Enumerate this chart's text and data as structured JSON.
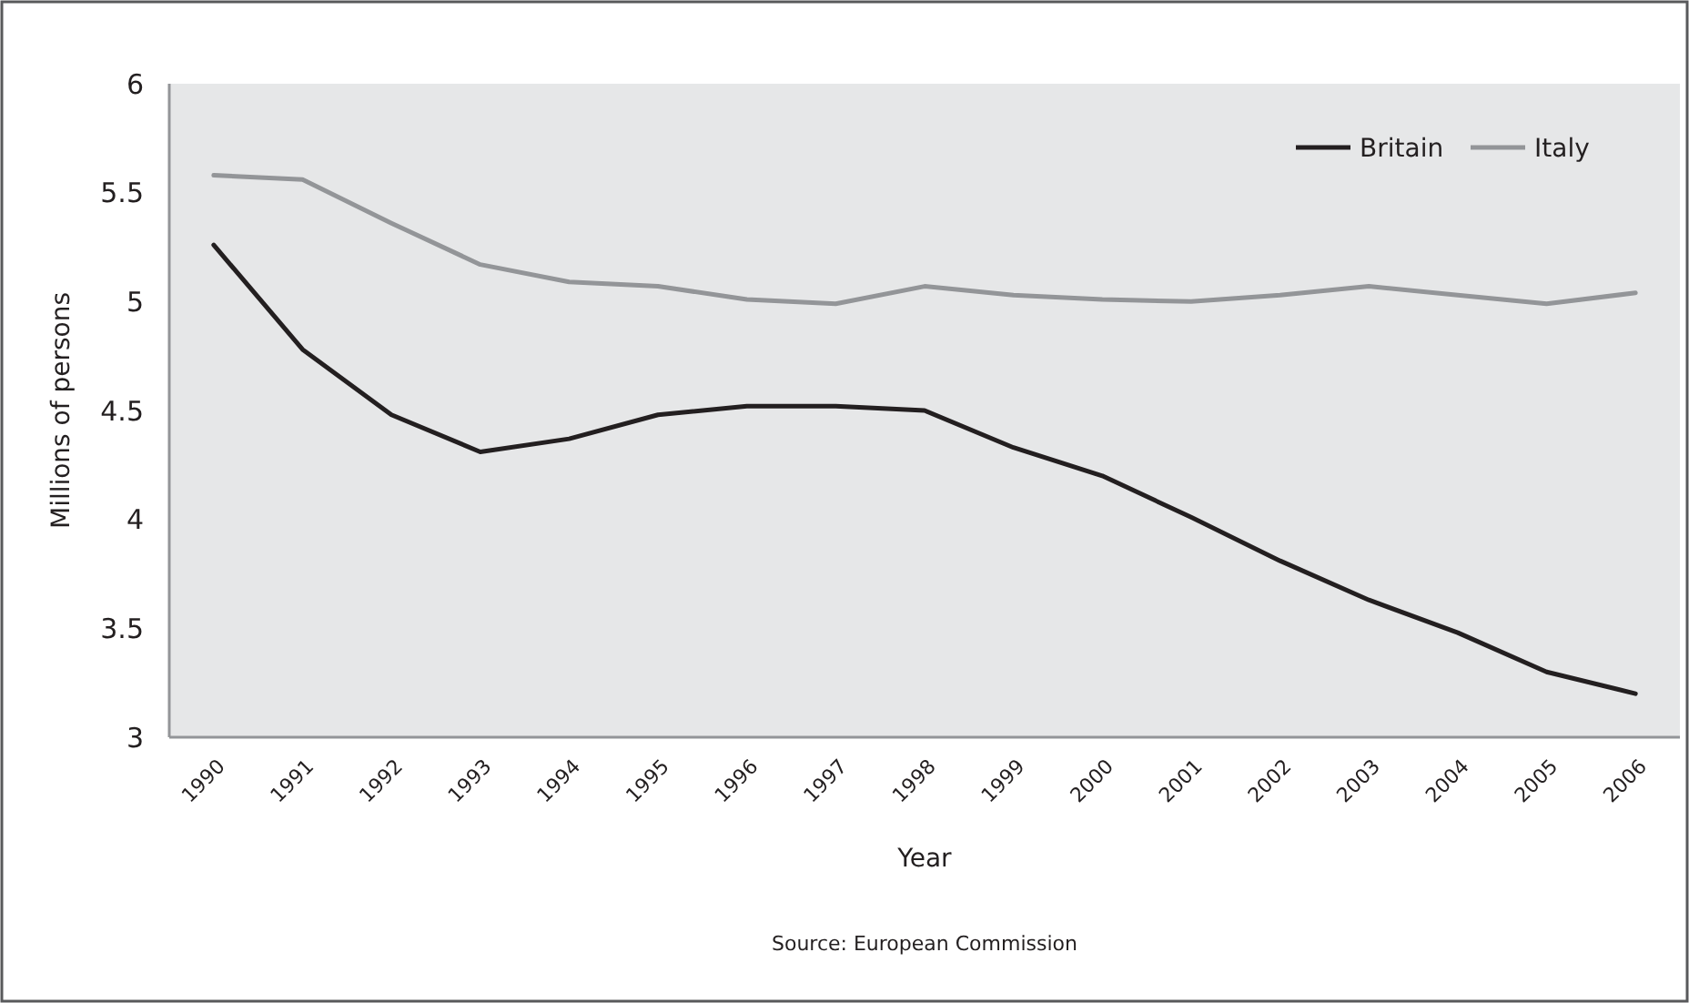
{
  "chart_data": {
    "type": "line",
    "xlabel": "Year",
    "ylabel": "Millions of persons",
    "annotations": [
      "Source: European Commission"
    ],
    "categories": [
      "1990",
      "1991",
      "1992",
      "1993",
      "1994",
      "1995",
      "1996",
      "1997",
      "1998",
      "1999",
      "2000",
      "2001",
      "2002",
      "2003",
      "2004",
      "2005",
      "2006"
    ],
    "series": [
      {
        "name": "Britain",
        "color": "#231f20",
        "values": [
          5.26,
          4.78,
          4.48,
          4.31,
          4.37,
          4.48,
          4.52,
          4.52,
          4.5,
          4.33,
          4.2,
          4.01,
          3.81,
          3.63,
          3.48,
          3.3,
          3.2
        ]
      },
      {
        "name": "Italy",
        "color": "#939598",
        "values": [
          5.58,
          5.56,
          5.36,
          5.17,
          5.09,
          5.07,
          5.01,
          4.99,
          5.07,
          5.03,
          5.01,
          5.0,
          5.03,
          5.07,
          5.03,
          4.99,
          5.04
        ]
      }
    ],
    "ylim": [
      3,
      6
    ],
    "yticks": [
      3,
      3.5,
      4,
      4.5,
      5,
      5.5,
      6
    ],
    "grid": false,
    "legend": "top right",
    "marker": "none",
    "line_style": "solid"
  }
}
